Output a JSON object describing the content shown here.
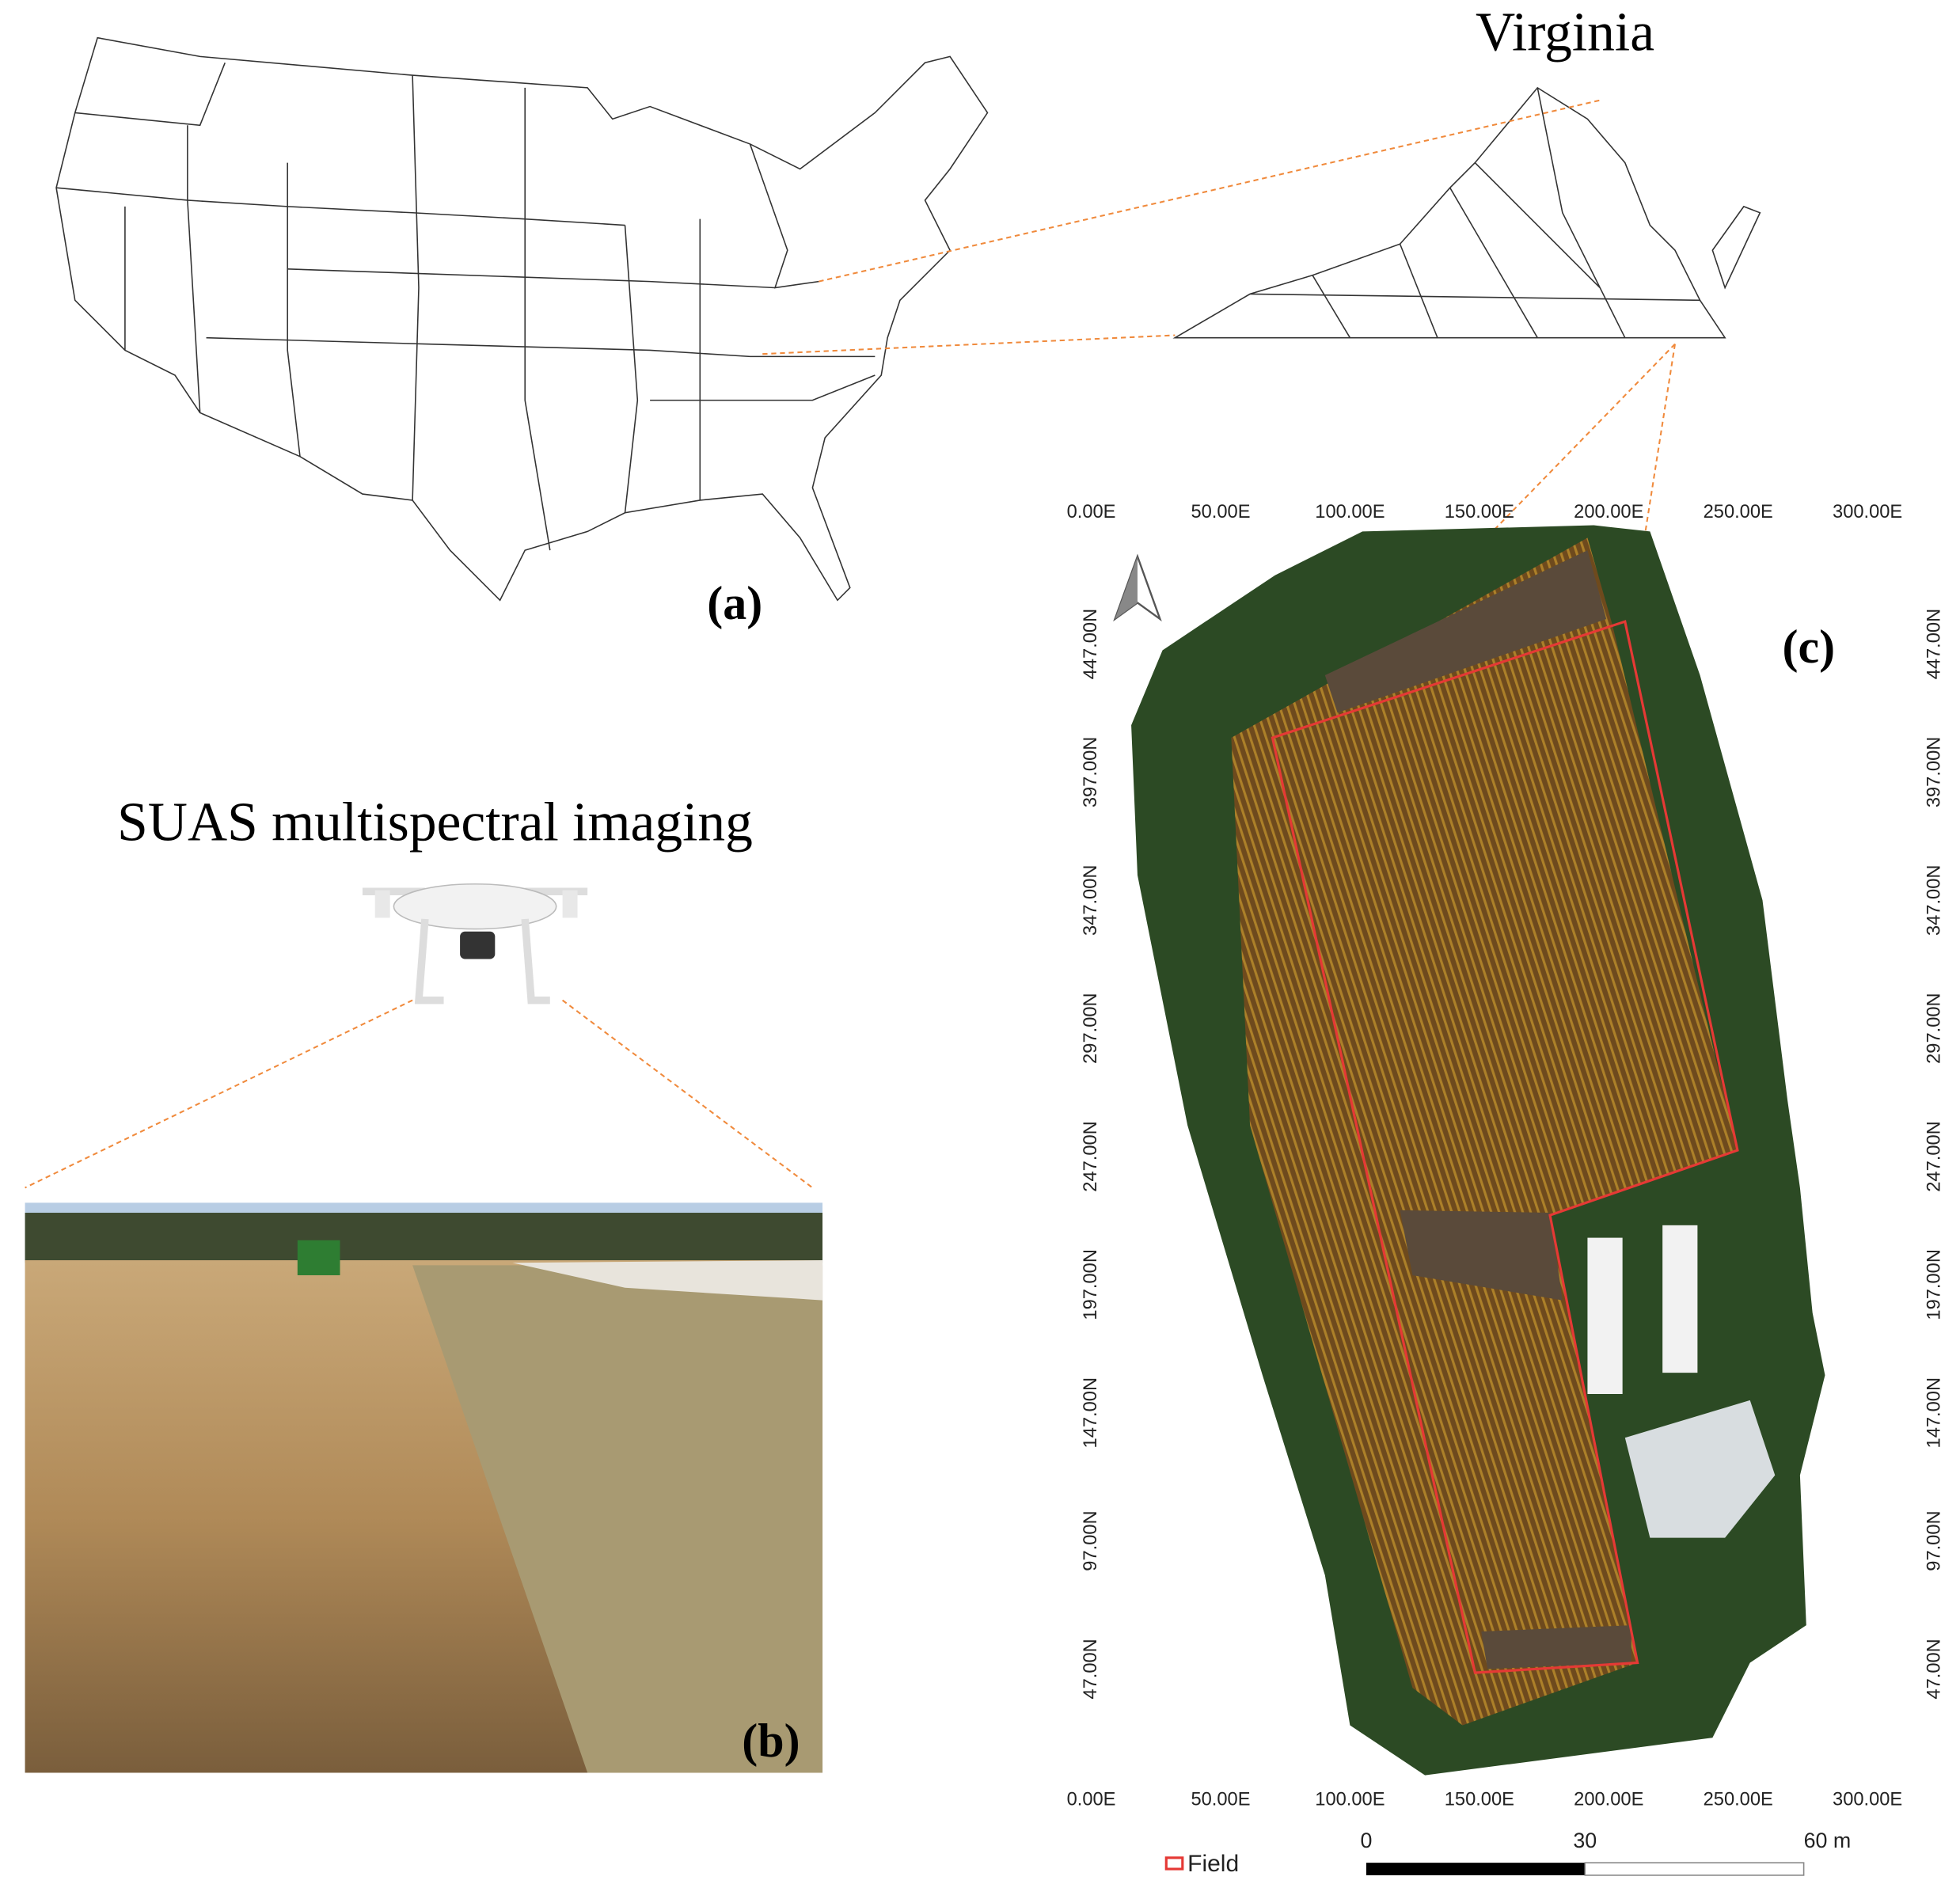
{
  "panel_a": {
    "label": "(a)",
    "inset_title": "Virginia"
  },
  "panel_b": {
    "title": "SUAS multispectral imaging",
    "label": "(b)"
  },
  "panel_c": {
    "label": "(c)",
    "x_labels": [
      "0.00E",
      "50.00E",
      "100.00E",
      "150.00E",
      "200.00E",
      "250.00E",
      "300.00E"
    ],
    "y_labels": [
      "447.00N",
      "397.00N",
      "347.00N",
      "297.00N",
      "247.00N",
      "197.00N",
      "147.00N",
      "97.00N",
      "47.00N"
    ],
    "legend": "Field",
    "scale_bar": [
      "0",
      "30",
      "60 m"
    ]
  }
}
